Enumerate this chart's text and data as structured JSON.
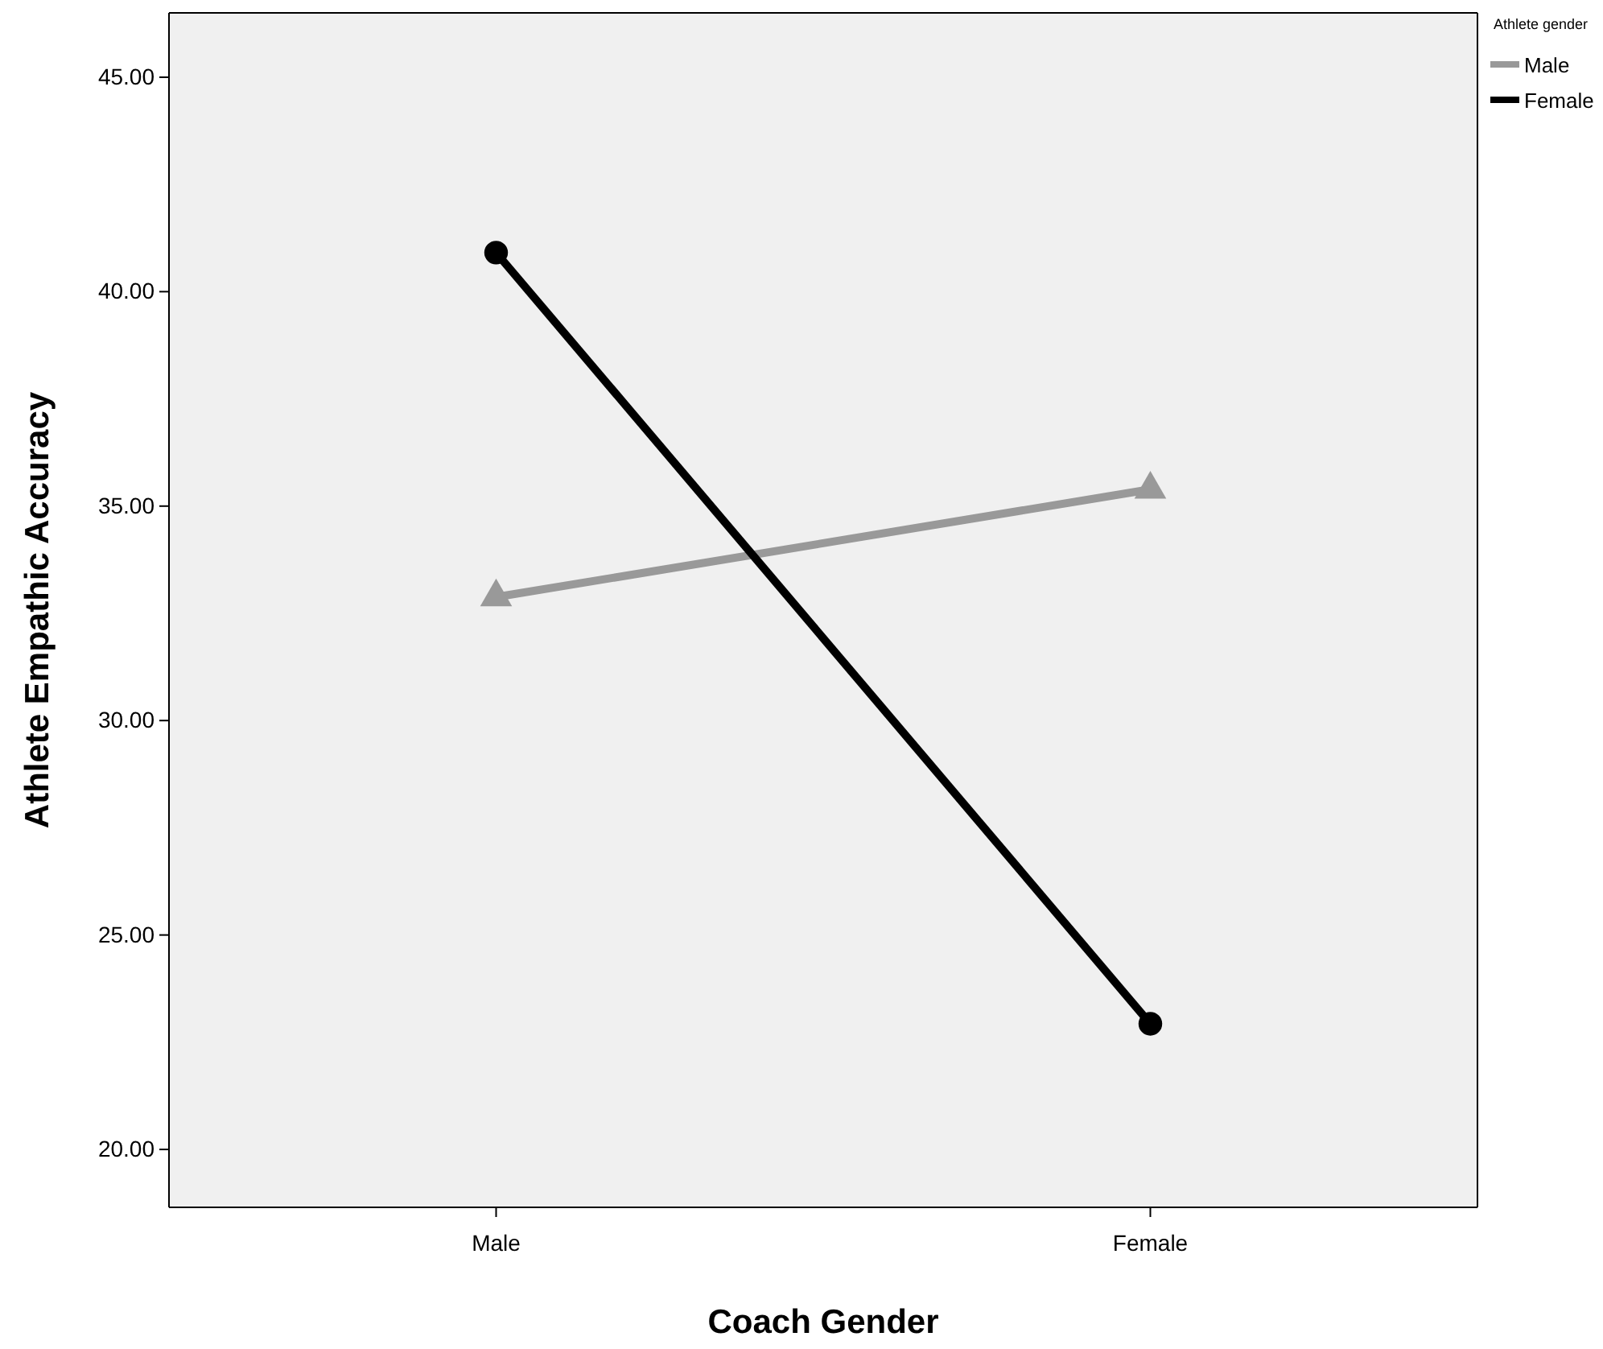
{
  "chart_data": {
    "type": "line",
    "xlabel": "Coach Gender",
    "ylabel": "Athlete Empathic Accuracy",
    "legend_title": "Athlete gender",
    "categories": [
      "Male",
      "Female"
    ],
    "series": [
      {
        "name": "Male",
        "color": "#999999",
        "values": [
          32.88,
          35.39
        ],
        "marker": "triangle"
      },
      {
        "name": "Female",
        "color": "#000000",
        "values": [
          40.91,
          22.93
        ],
        "marker": "circle"
      }
    ],
    "ylim": [
      18.65,
      46.5
    ],
    "yticks": [
      {
        "value": 20,
        "label": "20.00"
      },
      {
        "value": 25,
        "label": "25.00"
      },
      {
        "value": 30,
        "label": "30.00"
      },
      {
        "value": 35,
        "label": "35.00"
      },
      {
        "value": 40,
        "label": "40.00"
      },
      {
        "value": 45,
        "label": "45.00"
      }
    ],
    "grid": false,
    "legend": "top right",
    "line_style": "solid"
  }
}
